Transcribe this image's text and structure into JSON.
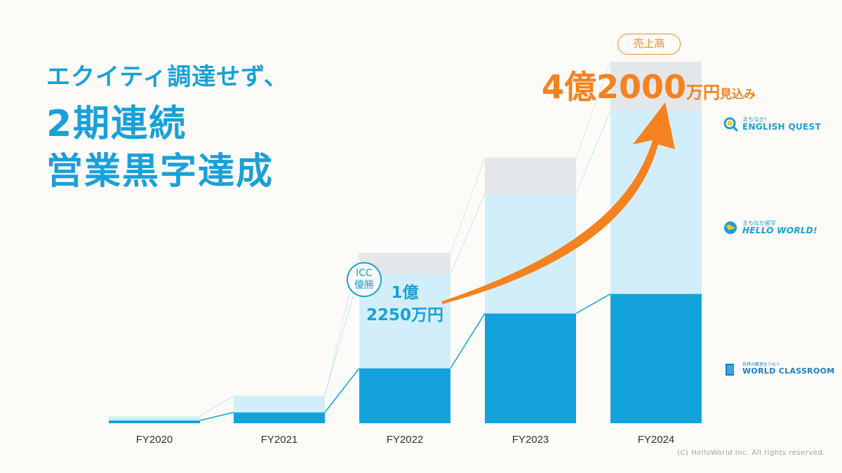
{
  "headline": {
    "line1": "エクイティ調達せず、",
    "line2": "2期連続",
    "line3": "営業黒字達成"
  },
  "chart_data": {
    "type": "bar",
    "stacked": true,
    "categories": [
      "FY2020",
      "FY2021",
      "FY2022",
      "FY2023",
      "FY2024"
    ],
    "series": [
      {
        "name": "WORLD CLASSROOM",
        "color": "#13a3dc",
        "values": [
          200,
          780,
          3950,
          7900,
          9300
        ]
      },
      {
        "name": "HELLO WORLD!",
        "color": "#d2eefa",
        "values": [
          300,
          1200,
          6800,
          8600,
          13200
        ]
      },
      {
        "name": "ENGLISH QUEST",
        "color": "#e4e7ea",
        "values": [
          0,
          0,
          1500,
          2600,
          3500
        ]
      }
    ],
    "ylim": [
      0,
      26000
    ],
    "annotations": {
      "fy2022_total": "1億\n2250万円",
      "icc_badge": [
        "ICC",
        "優勝"
      ],
      "revenue_pill": "売上高",
      "revenue_total_big": "4億2000",
      "revenue_total_unit": "万円",
      "revenue_total_suffix": "見込み"
    }
  },
  "logos": {
    "english_quest": {
      "sub": "まちなか!",
      "main": "ENGLISH QUEST"
    },
    "hello_world": {
      "sub": "まちなか留学",
      "main": "HELLO WORLD!"
    },
    "world_classroom": {
      "sub": "世界の教室をつなぐ",
      "main": "WORLD CLASSROOM"
    }
  },
  "copyright": "(C) HelloWorld Inc. All rights reserved.",
  "colors": {
    "accent_blue": "#1aa0d8",
    "accent_orange": "#f5821f"
  }
}
